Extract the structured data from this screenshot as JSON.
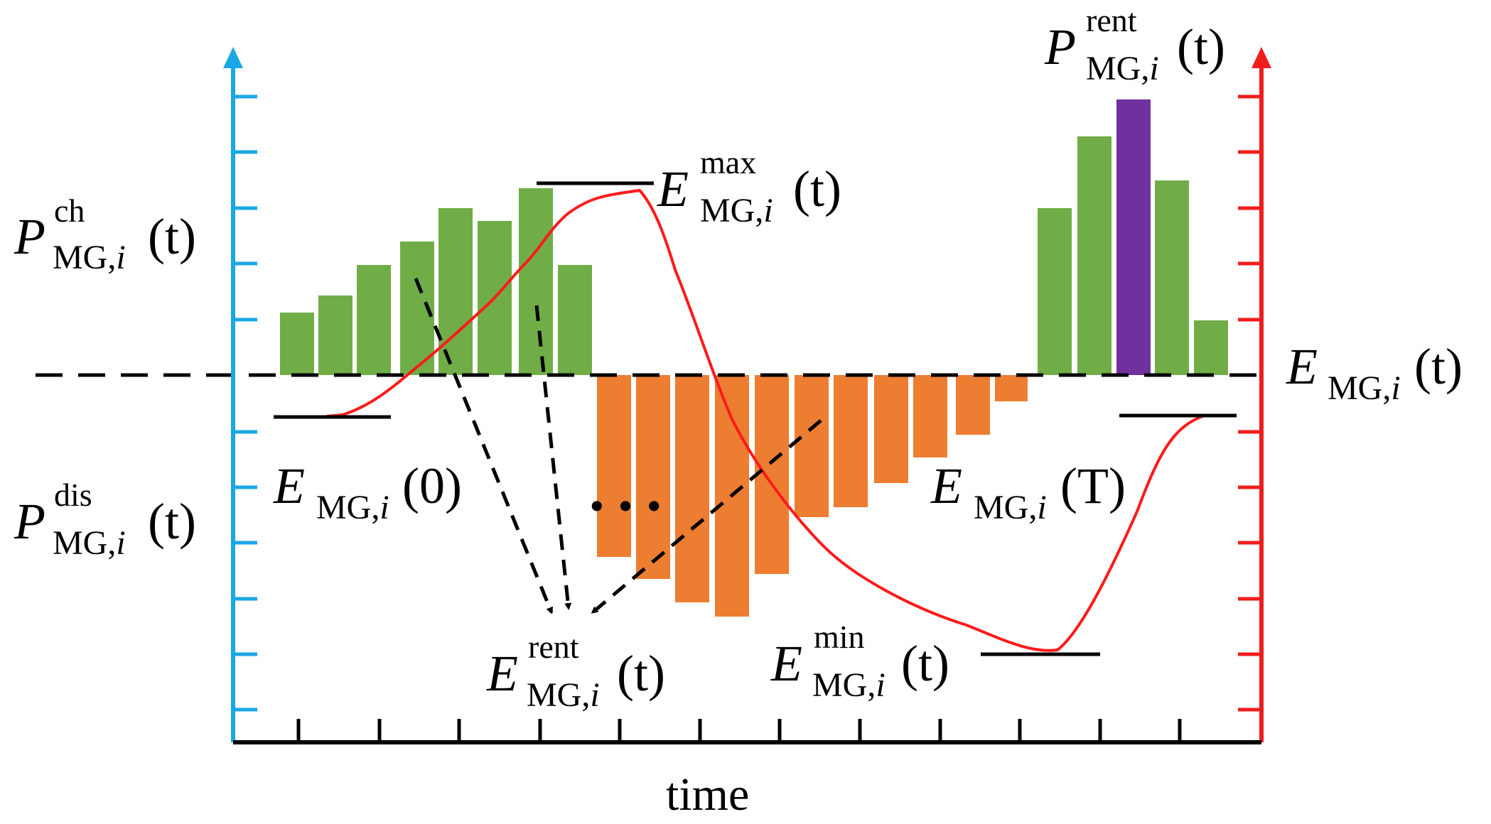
{
  "colors": {
    "left_axis": "#1aa7e6",
    "right_axis": "#f01d1d",
    "charge_bar": "#70ad47",
    "discharge_bar": "#ed7d31",
    "rent_bar": "#7030a0",
    "energy_curve": "#ff1a1a",
    "reference": "#000000"
  },
  "x_axis_label": "time",
  "ellipsis": "…",
  "labels": {
    "p_ch": {
      "symbol": "P",
      "sub": "MG,",
      "sub_i": "i",
      "sup": "ch",
      "arg": "(t)"
    },
    "p_dis": {
      "symbol": "P",
      "sub": "MG,",
      "sub_i": "i",
      "sup": "dis",
      "arg": "(t)"
    },
    "p_rent": {
      "symbol": "P",
      "sub": "MG,",
      "sub_i": "i",
      "sup": "rent",
      "arg": "(t)"
    },
    "e_max": {
      "symbol": "E",
      "sub": "MG,",
      "sub_i": "i",
      "sup": "max",
      "arg": "(t)"
    },
    "e_min": {
      "symbol": "E",
      "sub": "MG,",
      "sub_i": "i",
      "sup": "min",
      "arg": "(t)"
    },
    "e_rent": {
      "symbol": "E",
      "sub": "MG,",
      "sub_i": "i",
      "sup": "rent",
      "arg": "(t)"
    },
    "e_t": {
      "symbol": "E",
      "sub": "MG,",
      "sub_i": "i",
      "sup": "",
      "arg": "(t)"
    },
    "e_0": {
      "symbol": "E",
      "sub": "MG,",
      "sub_i": "i",
      "sup": "",
      "arg": "(0)"
    },
    "e_T": {
      "symbol": "E",
      "sub": "MG,",
      "sub_i": "i",
      "sup": "",
      "arg": "(T)"
    }
  }
}
